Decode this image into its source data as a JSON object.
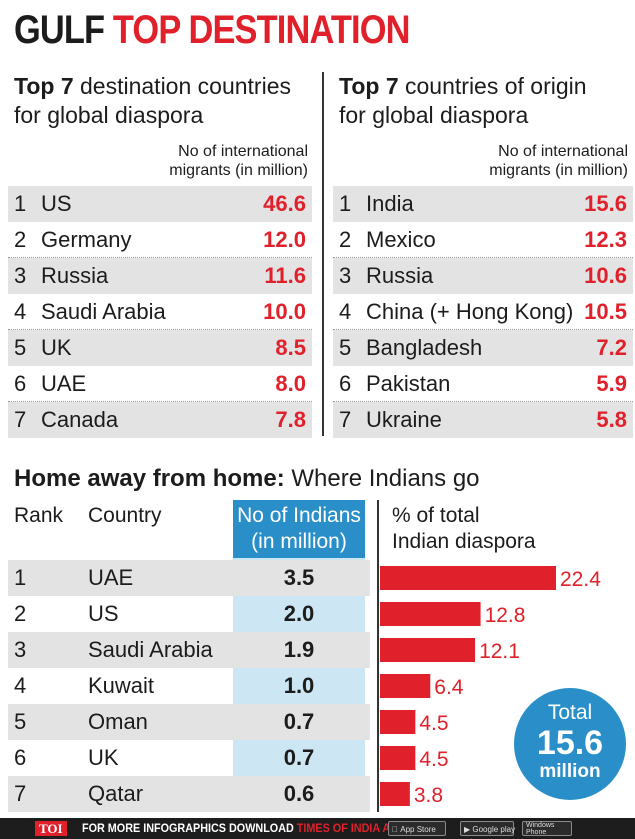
{
  "title": {
    "part1": "GULF",
    "part2": "TOP DESTINATION"
  },
  "left_panel": {
    "title_bold": "Top 7",
    "title_line1": " destination countries",
    "title_line2": "for global diaspora",
    "col_header_line1": "No of international",
    "col_header_line2": "migrants (in million)",
    "rows": [
      {
        "rank": "1",
        "name": "US",
        "value": "46.6"
      },
      {
        "rank": "2",
        "name": "Germany",
        "value": "12.0"
      },
      {
        "rank": "3",
        "name": "Russia",
        "value": "11.6"
      },
      {
        "rank": "4",
        "name": "Saudi Arabia",
        "value": "10.0"
      },
      {
        "rank": "5",
        "name": "UK",
        "value": "8.5"
      },
      {
        "rank": "6",
        "name": "UAE",
        "value": "8.0"
      },
      {
        "rank": "7",
        "name": "Canada",
        "value": "7.8"
      }
    ]
  },
  "right_panel": {
    "title_bold": "Top 7",
    "title_line1": " countries of origin",
    "title_line2": "for global diaspora",
    "col_header_line1": "No of international",
    "col_header_line2": "migrants (in million)",
    "rows": [
      {
        "rank": "1",
        "name": "India",
        "value": "15.6"
      },
      {
        "rank": "2",
        "name": "Mexico",
        "value": "12.3"
      },
      {
        "rank": "3",
        "name": "Russia",
        "value": "10.6"
      },
      {
        "rank": "4",
        "name": "China (+ Hong Kong)",
        "value": "10.5"
      },
      {
        "rank": "5",
        "name": "Bangladesh",
        "value": "7.2"
      },
      {
        "rank": "6",
        "name": "Pakistan",
        "value": "5.9"
      },
      {
        "rank": "7",
        "name": "Ukraine",
        "value": "5.8"
      }
    ]
  },
  "home": {
    "title_bold": "Home away from home:",
    "title_rest": " Where Indians go",
    "rank_header": "Rank",
    "country_header": "Country",
    "indians_header_line1": "No of Indians",
    "indians_header_line2": "(in million)",
    "pct_header_line1": "% of total",
    "pct_header_line2": "Indian diaspora",
    "total_label": "Total",
    "total_value": "15.6",
    "total_unit": "million",
    "bar_color": "#e0202a",
    "accent_color": "#2a8fc9"
  },
  "chart_data": {
    "type": "bar",
    "categories": [
      "UAE",
      "US",
      "Saudi Arabia",
      "Kuwait",
      "Oman",
      "UK",
      "Qatar"
    ],
    "ranks": [
      "1",
      "2",
      "3",
      "4",
      "5",
      "6",
      "7"
    ],
    "indians_million": [
      "3.5",
      "2.0",
      "1.9",
      "1.0",
      "0.7",
      "0.7",
      "0.6"
    ],
    "values": [
      22.4,
      12.8,
      12.1,
      6.4,
      4.5,
      4.5,
      3.8
    ],
    "value_labels": [
      "22.4",
      "12.8",
      "12.1",
      "6.4",
      "4.5",
      "4.5",
      "3.8"
    ],
    "orientation": "horizontal"
  },
  "footer": {
    "brand": "TOI",
    "message": "FOR MORE  INFOGRAPHICS DOWNLOAD ",
    "app_name": "TIMES OF INDIA APP",
    "store1_small": "Available on the",
    "store1": "App Store",
    "store2": "Google play",
    "store3_line1": "Windows",
    "store3_line2": "Phone"
  }
}
